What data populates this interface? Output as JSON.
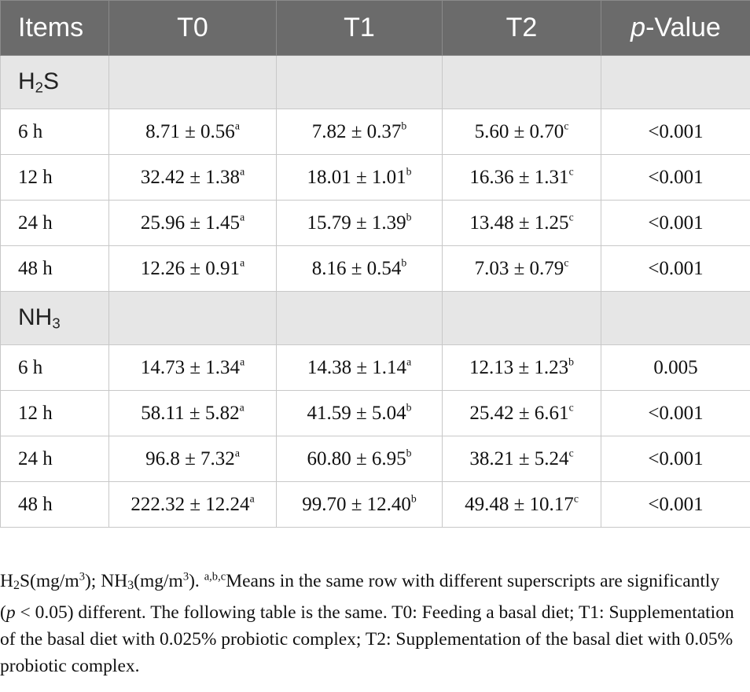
{
  "table": {
    "headers": {
      "items": "Items",
      "t0": "T0",
      "t1": "T1",
      "t2": "T2",
      "p_prefix": "p",
      "p_suffix": "-Value"
    },
    "groups": [
      {
        "base": "H",
        "sub": "2",
        "rest": "S",
        "rows": [
          {
            "time": "6 h",
            "t0": "8.71 ± 0.56",
            "t0_sup": "a",
            "t1": "7.82 ± 0.37",
            "t1_sup": "b",
            "t2": "5.60 ± 0.70",
            "t2_sup": "c",
            "p": "<0.001"
          },
          {
            "time": "12 h",
            "t0": "32.42 ± 1.38",
            "t0_sup": "a",
            "t1": "18.01 ± 1.01",
            "t1_sup": "b",
            "t2": "16.36 ± 1.31",
            "t2_sup": "c",
            "p": "<0.001"
          },
          {
            "time": "24 h",
            "t0": "25.96 ± 1.45",
            "t0_sup": "a",
            "t1": "15.79 ± 1.39",
            "t1_sup": "b",
            "t2": "13.48 ± 1.25",
            "t2_sup": "c",
            "p": "<0.001"
          },
          {
            "time": "48 h",
            "t0": "12.26 ± 0.91",
            "t0_sup": "a",
            "t1": "8.16 ± 0.54",
            "t1_sup": "b",
            "t2": "7.03 ± 0.79",
            "t2_sup": "c",
            "p": "<0.001"
          }
        ]
      },
      {
        "base": "NH",
        "sub": "3",
        "rest": "",
        "rows": [
          {
            "time": "6 h",
            "t0": "14.73 ± 1.34",
            "t0_sup": "a",
            "t1": "14.38 ± 1.14",
            "t1_sup": "a",
            "t2": "12.13 ± 1.23",
            "t2_sup": "b",
            "p": "0.005"
          },
          {
            "time": "12 h",
            "t0": "58.11 ± 5.82",
            "t0_sup": "a",
            "t1": "41.59 ± 5.04",
            "t1_sup": "b",
            "t2": "25.42 ± 6.61",
            "t2_sup": "c",
            "p": "<0.001"
          },
          {
            "time": "24 h",
            "t0": "96.8 ± 7.32",
            "t0_sup": "a",
            "t1": "60.80 ± 6.95",
            "t1_sup": "b",
            "t2": "38.21 ± 5.24",
            "t2_sup": "c",
            "p": "<0.001"
          },
          {
            "time": "48 h",
            "t0": "222.32 ± 12.24",
            "t0_sup": "a",
            "t1": "99.70 ± 12.40",
            "t1_sup": "b",
            "t2": "49.48 ± 10.17",
            "t2_sup": "c",
            "p": "<0.001"
          }
        ]
      }
    ]
  },
  "footnote": {
    "h2s_base": "H",
    "h2s_sub": "2",
    "h2s_rest": "S(mg/m",
    "cube": "3",
    "close": "); ",
    "nh3_base": "NH",
    "nh3_sub": "3",
    "nh3_rest": "(mg/m",
    "cube2": "3",
    "close2": "). ",
    "sup_letters": "a,b,c",
    "text_a": "Means in the same row with different superscripts are significantly (",
    "p_italic": "p",
    "text_b": " < 0.05) different. The following table is the same. T0: Feeding a basal diet; T1: Supplementation of the basal diet with 0.025% probiotic complex; T2: Supplementation of the basal diet with 0.05% probiotic complex."
  }
}
